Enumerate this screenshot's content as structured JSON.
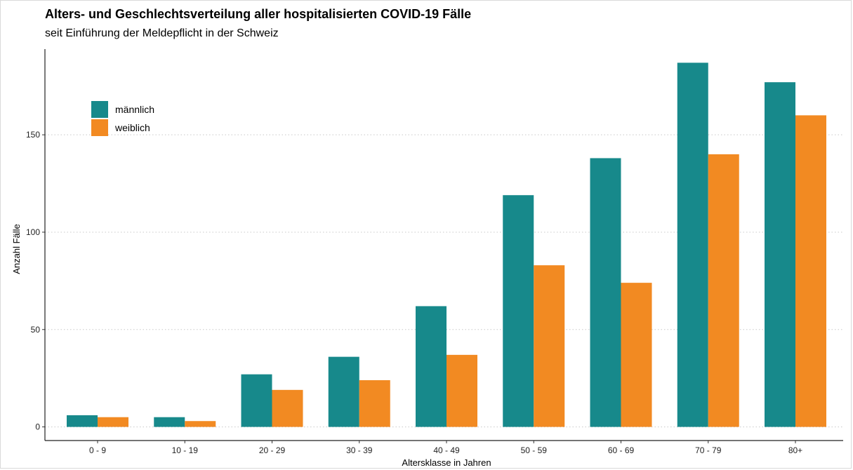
{
  "chart_data": {
    "type": "bar",
    "title": "Alters- und Geschlechtsverteilung aller hospitalisierten COVID-19 Fälle",
    "subtitle": "seit Einführung der Meldepflicht in der Schweiz",
    "xlabel": "Altersklasse in Jahren",
    "ylabel": "Anzahl Fälle",
    "categories": [
      "0 - 9",
      "10 - 19",
      "20 - 29",
      "30 - 39",
      "40 - 49",
      "50 - 59",
      "60 - 69",
      "70 - 79",
      "80+"
    ],
    "series": [
      {
        "name": "männlich",
        "color": "#17898B",
        "values": [
          6,
          5,
          27,
          36,
          62,
          119,
          138,
          187,
          177
        ]
      },
      {
        "name": "weiblich",
        "color": "#F28A22",
        "values": [
          5,
          3,
          19,
          24,
          37,
          83,
          74,
          140,
          160
        ]
      }
    ],
    "ylim": [
      -7,
      194
    ],
    "yticks": [
      0,
      50,
      100,
      150
    ],
    "grid": "horizontal dotted",
    "legend_position": "top-left"
  }
}
